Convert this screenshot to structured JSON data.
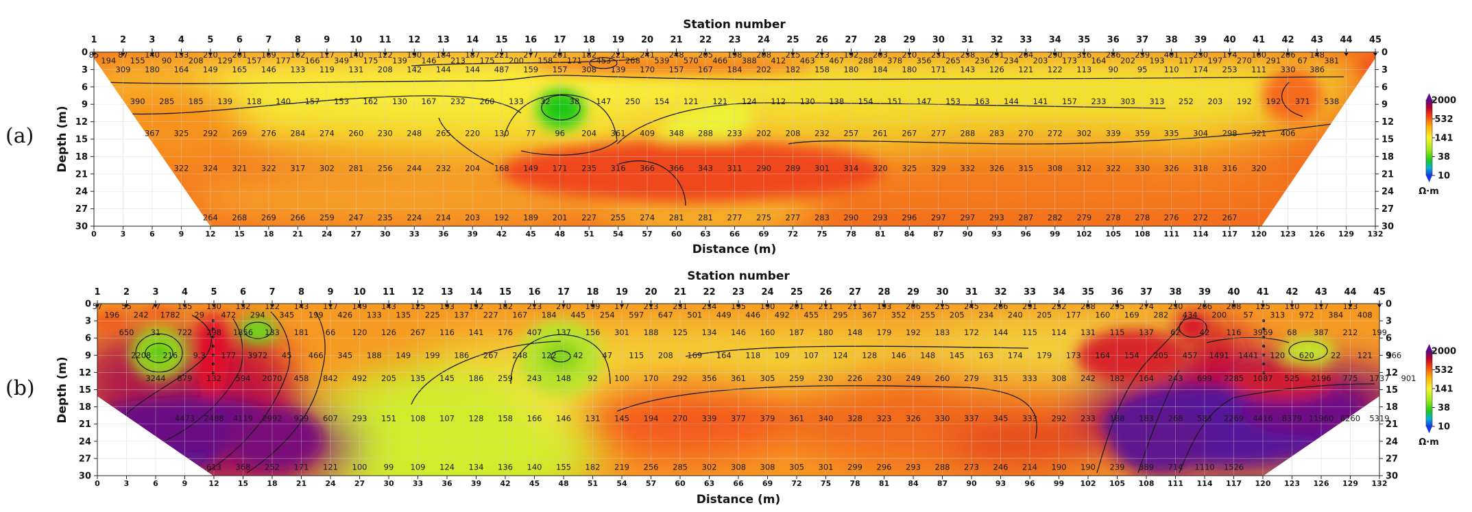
{
  "chart_data": [
    {
      "type": "heatmap",
      "panel_label": "(a)",
      "title": "Station number",
      "xlabel": "Distance (m)",
      "ylabel": "Depth (m)",
      "xlim": [
        0,
        132
      ],
      "ylim": [
        0,
        30
      ],
      "stations": [
        "1",
        "2",
        "3",
        "4",
        "5",
        "6",
        "7",
        "8",
        "9",
        "10",
        "11",
        "12",
        "13",
        "14",
        "15",
        "16",
        "17",
        "18",
        "19",
        "20",
        "21",
        "22",
        "23",
        "24",
        "25",
        "26",
        "27",
        "28",
        "29",
        "30",
        "31",
        "32",
        "33",
        "34",
        "35",
        "36",
        "37",
        "38",
        "39",
        "40",
        "41",
        "42",
        "43",
        "44",
        "45"
      ],
      "x_ticks": [
        "0",
        "3",
        "6",
        "9",
        "12",
        "15",
        "18",
        "21",
        "24",
        "27",
        "30",
        "33",
        "36",
        "39",
        "42",
        "45",
        "48",
        "51",
        "54",
        "57",
        "60",
        "63",
        "66",
        "69",
        "72",
        "75",
        "78",
        "81",
        "84",
        "87",
        "90",
        "93",
        "96",
        "99",
        "102",
        "105",
        "108",
        "111",
        "114",
        "117",
        "120",
        "123",
        "126",
        "129",
        "132"
      ],
      "y_ticks": [
        "0",
        "3",
        "6",
        "9",
        "12",
        "15",
        "18",
        "21",
        "24",
        "27",
        "30"
      ],
      "grid": true,
      "colorbar": {
        "unit": "Ω·m",
        "ticks": [
          "10",
          "38",
          "141",
          "532",
          "2000"
        ]
      },
      "rows": [
        {
          "depth": 0.5,
          "x_start": 0,
          "values": [
            "85",
            "87",
            "140",
            "153",
            "210",
            "201",
            "169",
            "162",
            "117",
            "140",
            "122",
            "190",
            "184",
            "187",
            "221",
            "277",
            "201",
            "182",
            "221",
            "241",
            "248",
            "205",
            "198",
            "208",
            "215",
            "213",
            "192",
            "203",
            "210",
            "231",
            "258",
            "291",
            "264",
            "290",
            "316",
            "286",
            "239",
            "401",
            "250",
            "174",
            "160",
            "206",
            "148"
          ]
        },
        {
          "depth": 1.5,
          "x_start": 1.5,
          "values": [
            "194",
            "155",
            "90",
            "208",
            "129",
            "157",
            "177",
            "166",
            "349",
            "175",
            "139",
            "146",
            "213",
            "175",
            "200",
            "158",
            "171",
            "453",
            "268",
            "539",
            "570",
            "466",
            "388",
            "412",
            "463",
            "467",
            "288",
            "378",
            "356",
            "265",
            "236",
            "234",
            "203",
            "173",
            "164",
            "202",
            "193",
            "117",
            "197",
            "270",
            "291",
            "67",
            "381"
          ]
        },
        {
          "depth": 3,
          "x_start": 3,
          "values": [
            "309",
            "180",
            "164",
            "149",
            "165",
            "146",
            "133",
            "119",
            "131",
            "208",
            "142",
            "144",
            "144",
            "487",
            "159",
            "157",
            "308",
            "139",
            "170",
            "157",
            "167",
            "184",
            "202",
            "182",
            "158",
            "180",
            "184",
            "180",
            "171",
            "143",
            "126",
            "121",
            "122",
            "113",
            "90",
            "95",
            "110",
            "174",
            "253",
            "111",
            "330",
            "386"
          ]
        },
        {
          "depth": 8.5,
          "x_start": 4.5,
          "values": [
            "390",
            "285",
            "185",
            "139",
            "118",
            "140",
            "157",
            "153",
            "162",
            "130",
            "167",
            "232",
            "260",
            "133",
            "32",
            "38",
            "147",
            "250",
            "154",
            "121",
            "121",
            "124",
            "112",
            "130",
            "138",
            "154",
            "151",
            "147",
            "153",
            "163",
            "144",
            "141",
            "157",
            "233",
            "303",
            "313",
            "252",
            "203",
            "192",
            "192",
            "371",
            "538"
          ]
        },
        {
          "depth": 14,
          "x_start": 6,
          "values": [
            "367",
            "325",
            "292",
            "269",
            "276",
            "284",
            "274",
            "260",
            "230",
            "248",
            "265",
            "220",
            "130",
            "77",
            "96",
            "204",
            "361",
            "409",
            "348",
            "288",
            "233",
            "202",
            "208",
            "232",
            "257",
            "261",
            "267",
            "277",
            "288",
            "283",
            "270",
            "272",
            "302",
            "339",
            "359",
            "335",
            "304",
            "298",
            "321",
            "406"
          ]
        },
        {
          "depth": 20,
          "x_start": 9,
          "values": [
            "322",
            "324",
            "321",
            "322",
            "317",
            "302",
            "281",
            "256",
            "244",
            "232",
            "204",
            "168",
            "149",
            "171",
            "235",
            "316",
            "366",
            "366",
            "343",
            "311",
            "290",
            "289",
            "301",
            "314",
            "320",
            "325",
            "329",
            "332",
            "326",
            "315",
            "308",
            "312",
            "322",
            "330",
            "326",
            "318",
            "316",
            "320"
          ]
        },
        {
          "depth": 28.5,
          "x_start": 12,
          "values": [
            "264",
            "268",
            "269",
            "266",
            "259",
            "247",
            "235",
            "224",
            "214",
            "203",
            "192",
            "189",
            "201",
            "227",
            "255",
            "274",
            "281",
            "281",
            "277",
            "275",
            "277",
            "283",
            "290",
            "293",
            "296",
            "297",
            "297",
            "293",
            "287",
            "282",
            "279",
            "278",
            "278",
            "276",
            "272",
            "267"
          ]
        }
      ]
    },
    {
      "type": "heatmap",
      "panel_label": "(b)",
      "title": "Station number",
      "xlabel": "Distance (m)",
      "ylabel": "Depth (m)",
      "xlim": [
        0,
        132
      ],
      "ylim": [
        0,
        30
      ],
      "stations": [
        "1",
        "2",
        "3",
        "4",
        "5",
        "6",
        "7",
        "8",
        "9",
        "10",
        "11",
        "12",
        "13",
        "14",
        "15",
        "16",
        "17",
        "18",
        "19",
        "20",
        "21",
        "22",
        "23",
        "24",
        "25",
        "26",
        "27",
        "28",
        "29",
        "30",
        "31",
        "32",
        "33",
        "34",
        "35",
        "36",
        "37",
        "38",
        "39",
        "40",
        "41",
        "42",
        "43",
        "44",
        "45"
      ],
      "x_ticks": [
        "0",
        "3",
        "6",
        "9",
        "12",
        "15",
        "18",
        "21",
        "24",
        "27",
        "30",
        "33",
        "36",
        "39",
        "42",
        "45",
        "48",
        "51",
        "54",
        "57",
        "60",
        "63",
        "66",
        "69",
        "72",
        "75",
        "78",
        "81",
        "84",
        "87",
        "90",
        "93",
        "96",
        "99",
        "102",
        "105",
        "108",
        "111",
        "114",
        "117",
        "120",
        "123",
        "126",
        "129",
        "132"
      ],
      "y_ticks": [
        "0",
        "3",
        "6",
        "9",
        "12",
        "15",
        "18",
        "21",
        "24",
        "27",
        "30"
      ],
      "grid": true,
      "colorbar": {
        "unit": "Ω·m",
        "ticks": [
          "10",
          "38",
          "141",
          "532",
          "2000"
        ]
      },
      "rows": [
        {
          "depth": 0.5,
          "x_start": 0,
          "values": [
            "57",
            "55",
            "77",
            "155",
            "130",
            "132",
            "122",
            "143",
            "117",
            "149",
            "143",
            "125",
            "193",
            "192",
            "182",
            "213",
            "270",
            "199",
            "177",
            "213",
            "231",
            "234",
            "195",
            "190",
            "201",
            "211",
            "211",
            "193",
            "206",
            "215",
            "245",
            "266",
            "291",
            "252",
            "268",
            "295",
            "274",
            "230",
            "266",
            "208",
            "125",
            "110",
            "117",
            "123"
          ]
        },
        {
          "depth": 2,
          "x_start": 1.5,
          "values": [
            "196",
            "242",
            "1782",
            "29",
            "472",
            "294",
            "345",
            "199",
            "426",
            "133",
            "135",
            "225",
            "137",
            "227",
            "167",
            "184",
            "445",
            "254",
            "597",
            "647",
            "501",
            "449",
            "446",
            "492",
            "455",
            "295",
            "367",
            "352",
            "255",
            "205",
            "234",
            "240",
            "205",
            "177",
            "160",
            "169",
            "282",
            "434",
            "200",
            "57",
            "313",
            "972",
            "384",
            "408"
          ]
        },
        {
          "depth": 5,
          "x_start": 3,
          "values": [
            "650",
            "31",
            "722",
            "298",
            "1856",
            "133",
            "181",
            "66",
            "120",
            "126",
            "267",
            "116",
            "141",
            "176",
            "407",
            "137",
            "156",
            "301",
            "188",
            "125",
            "134",
            "146",
            "160",
            "187",
            "180",
            "148",
            "179",
            "192",
            "183",
            "172",
            "144",
            "115",
            "114",
            "131",
            "115",
            "137",
            "62",
            "42",
            "116",
            "3969",
            "68",
            "387",
            "212",
            "199"
          ]
        },
        {
          "depth": 9,
          "x_start": 4.5,
          "values": [
            "2208",
            "216",
            "9.3",
            "177",
            "3972",
            "45",
            "466",
            "345",
            "188",
            "149",
            "199",
            "186",
            "267",
            "248",
            "122",
            "42",
            "47",
            "115",
            "208",
            "169",
            "164",
            "118",
            "109",
            "107",
            "124",
            "128",
            "146",
            "148",
            "145",
            "163",
            "174",
            "179",
            "173",
            "164",
            "154",
            "205",
            "457",
            "1491",
            "1441",
            "120",
            "620",
            "22",
            "121",
            "166"
          ]
        },
        {
          "depth": 13,
          "x_start": 6,
          "values": [
            "3244",
            "879",
            "132",
            "594",
            "2070",
            "458",
            "842",
            "492",
            "205",
            "135",
            "145",
            "186",
            "259",
            "243",
            "148",
            "92",
            "100",
            "170",
            "292",
            "356",
            "361",
            "305",
            "259",
            "230",
            "226",
            "230",
            "249",
            "260",
            "279",
            "315",
            "333",
            "308",
            "242",
            "182",
            "164",
            "243",
            "699",
            "2285",
            "1087",
            "525",
            "2196",
            "775",
            "1737",
            "901"
          ]
        },
        {
          "depth": 20,
          "x_start": 9,
          "values": [
            "4473",
            "2488",
            "4119",
            "2992",
            "929",
            "607",
            "293",
            "151",
            "108",
            "107",
            "128",
            "158",
            "166",
            "146",
            "131",
            "145",
            "194",
            "270",
            "339",
            "377",
            "379",
            "361",
            "340",
            "328",
            "323",
            "326",
            "330",
            "337",
            "345",
            "333",
            "292",
            "233",
            "188",
            "183",
            "268",
            "583",
            "2269",
            "4416",
            "8379",
            "11960",
            "6260",
            "5319"
          ]
        },
        {
          "depth": 28.5,
          "x_start": 12,
          "values": [
            "613",
            "368",
            "252",
            "171",
            "121",
            "100",
            "99",
            "109",
            "124",
            "134",
            "136",
            "140",
            "155",
            "182",
            "219",
            "256",
            "285",
            "302",
            "308",
            "308",
            "305",
            "301",
            "299",
            "296",
            "293",
            "288",
            "273",
            "246",
            "214",
            "190",
            "190",
            "239",
            "389",
            "714",
            "1110",
            "1526"
          ]
        }
      ]
    }
  ]
}
